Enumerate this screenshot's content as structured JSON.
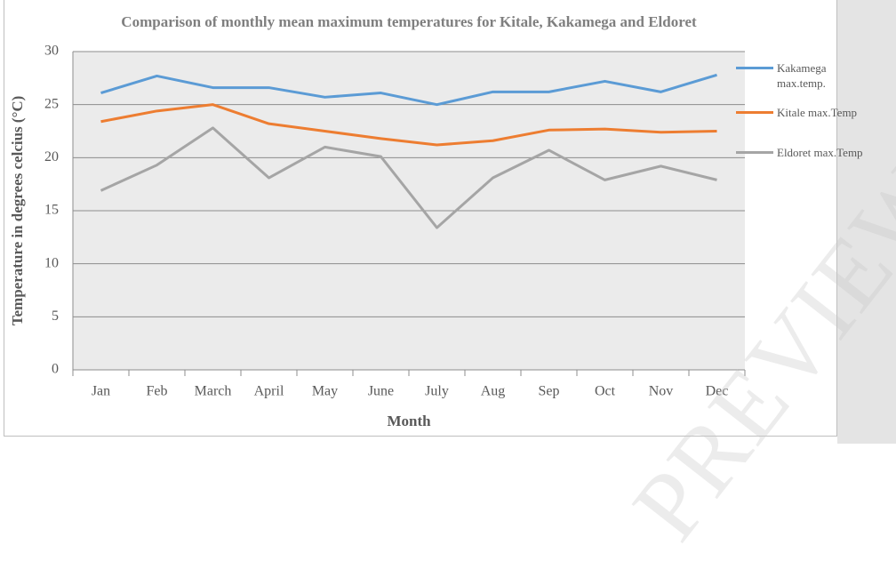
{
  "chart_data": {
    "type": "line",
    "title": "Comparison of monthly mean maximum temperatures for Kitale, Kakamega and Eldoret",
    "x_label": "Month",
    "y_label": "Temperature in degrees celcius (°C)",
    "categories": [
      "Jan",
      "Feb",
      "March",
      "April",
      "May",
      "June",
      "July",
      "Aug",
      "Sep",
      "Oct",
      "Nov",
      "Dec"
    ],
    "series": [
      {
        "name": "Kakamega max.temp.",
        "color": "#5b9bd5",
        "values": [
          26.1,
          27.7,
          26.6,
          26.6,
          25.7,
          26.1,
          25.0,
          26.2,
          26.2,
          27.2,
          26.2,
          27.8
        ]
      },
      {
        "name": "Kitale max.Temp",
        "color": "#ed7d31",
        "values": [
          23.4,
          24.4,
          25.0,
          23.2,
          22.5,
          21.8,
          21.2,
          21.6,
          22.6,
          22.7,
          22.4,
          22.5
        ]
      },
      {
        "name": "Eldoret max.Temp",
        "color": "#a5a5a5",
        "values": [
          16.9,
          19.3,
          22.8,
          18.1,
          21.0,
          20.1,
          13.4,
          18.1,
          20.7,
          17.9,
          19.2,
          17.9
        ]
      }
    ],
    "ylim": [
      0,
      30
    ],
    "yticks": [
      0,
      5,
      10,
      15,
      20,
      25,
      30
    ],
    "grid": true,
    "legend": "right"
  },
  "watermark": "PREVIEW"
}
